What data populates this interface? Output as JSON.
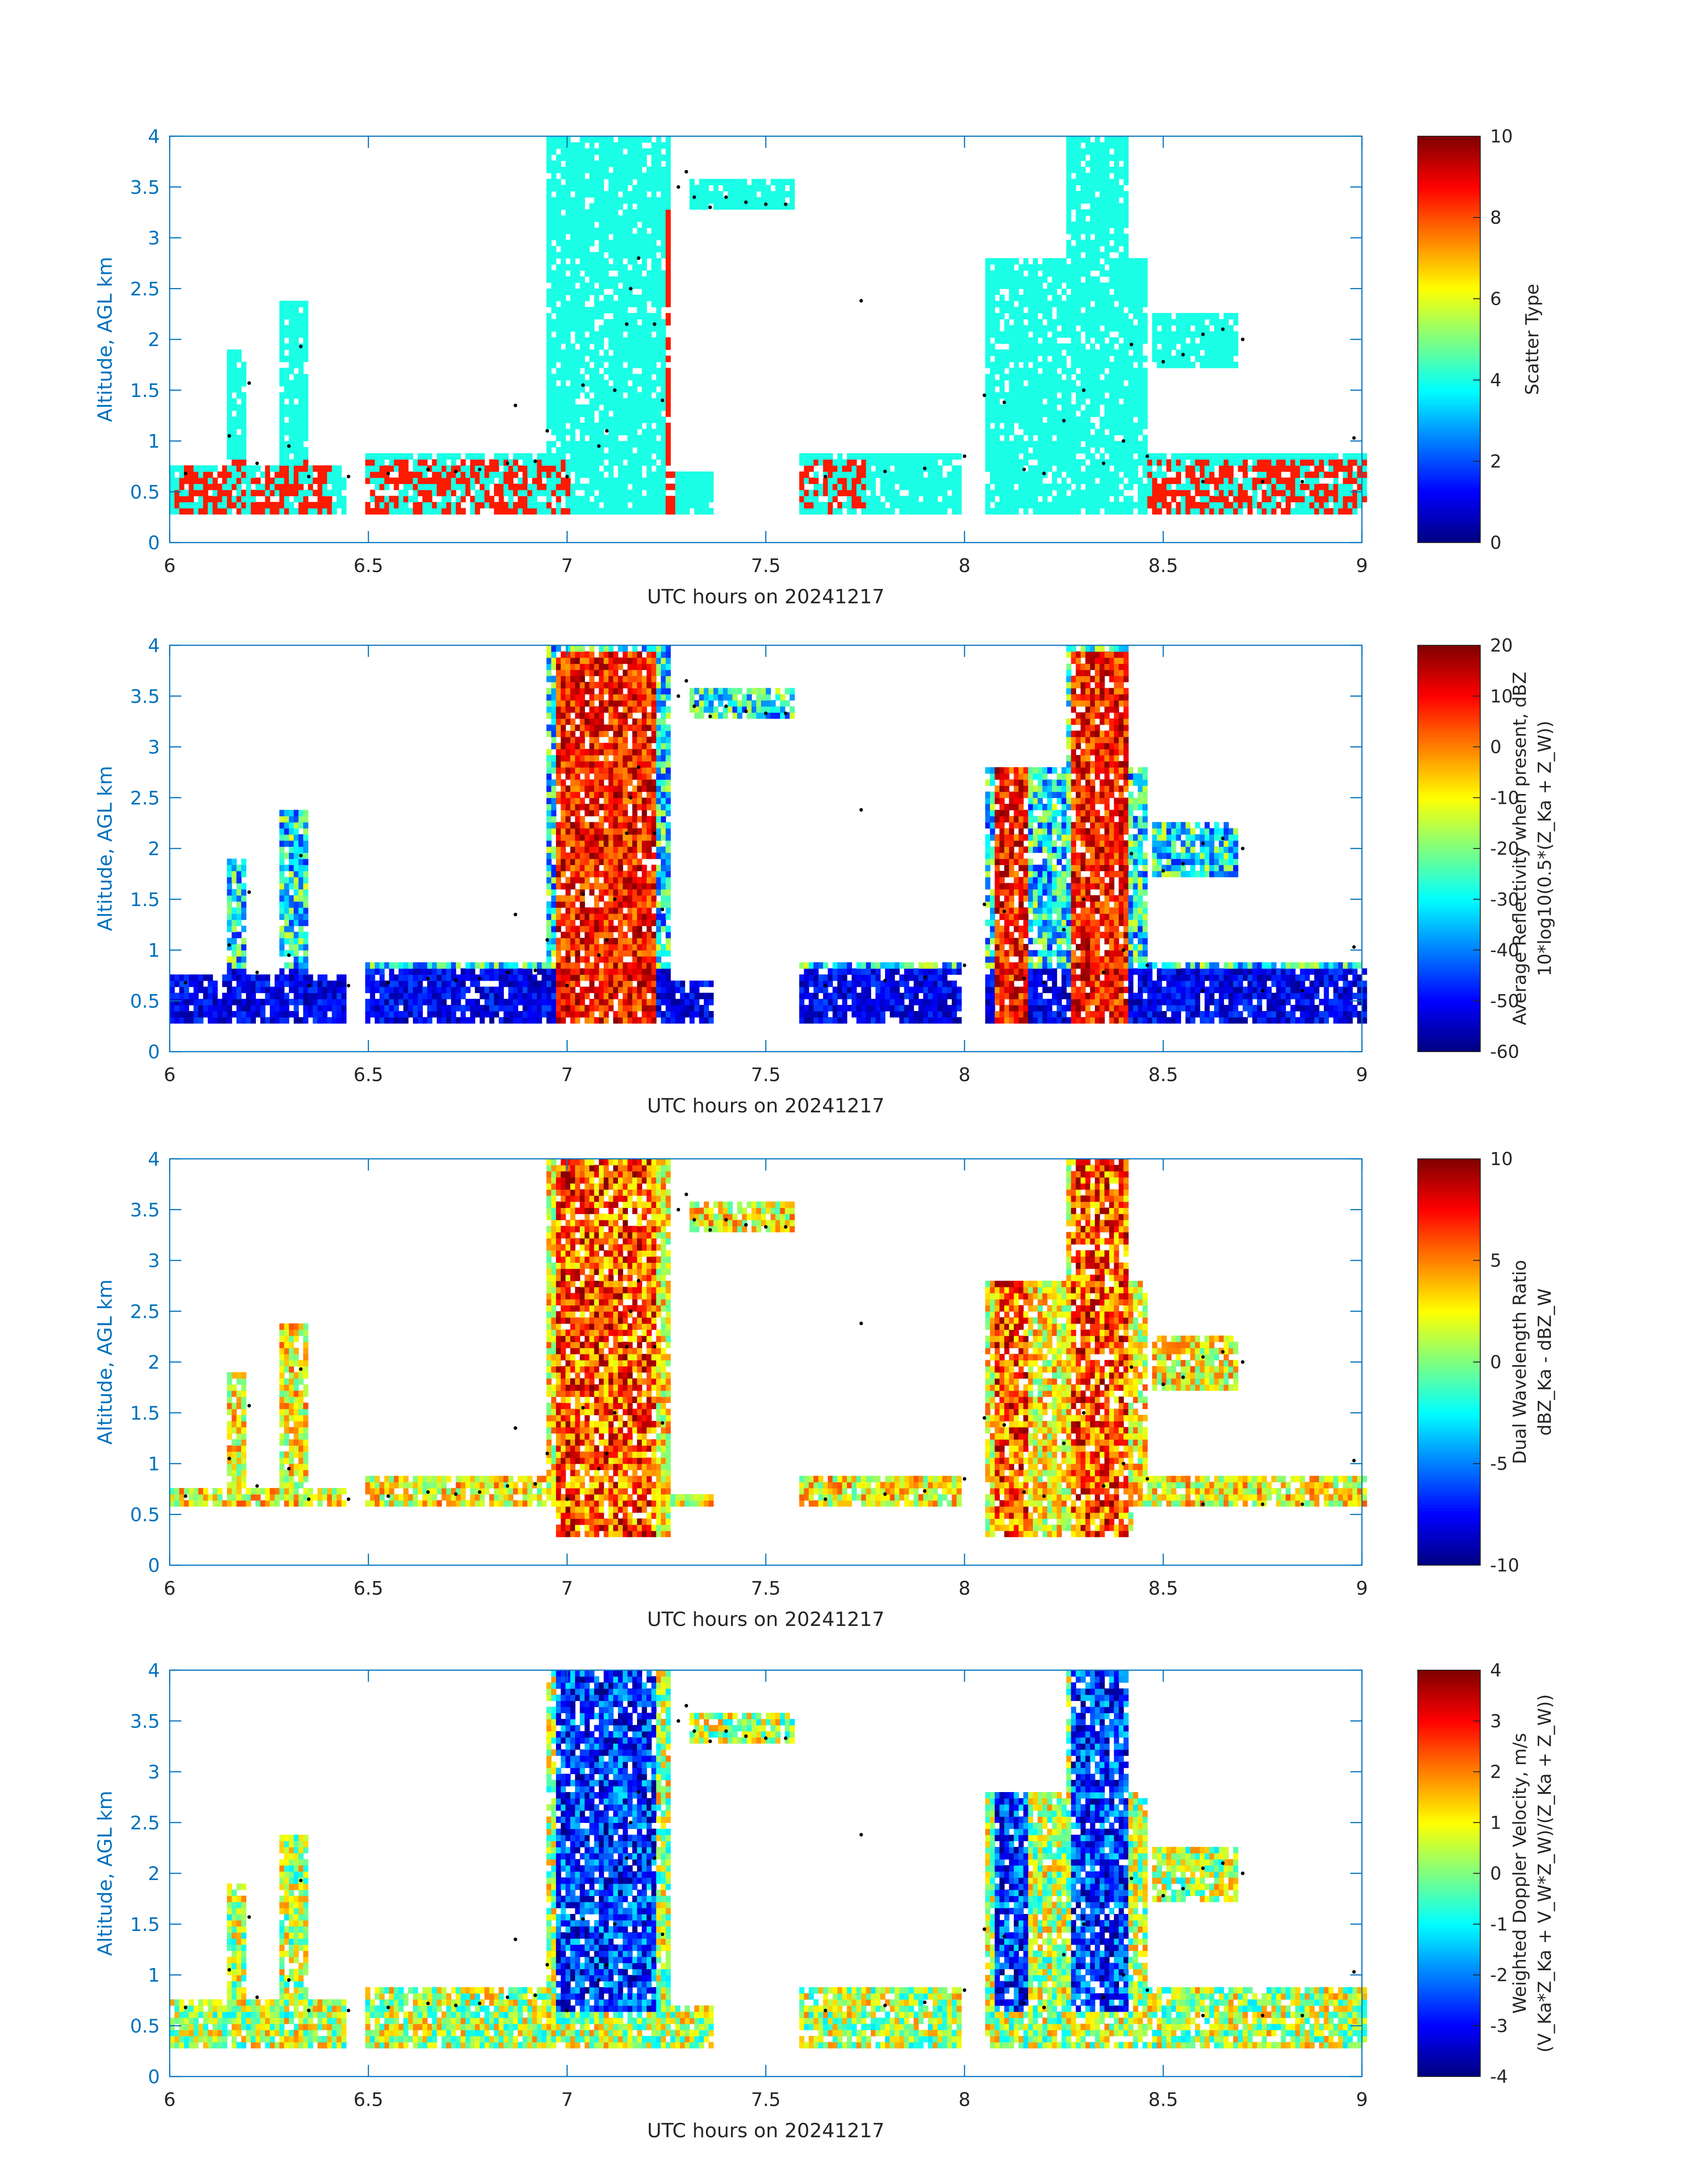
{
  "figure": {
    "background": "#ffffff",
    "axis_color": "#0072bd",
    "text_color": "#262626",
    "marker_color": "#000000"
  },
  "chart_data": [
    {
      "type": "heatmap",
      "title": "",
      "xlabel": "UTC hours on 20241217",
      "ylabel": "Altitude, AGL km",
      "xlim": [
        6,
        9
      ],
      "ylim": [
        0,
        4
      ],
      "xticks": [
        6,
        6.5,
        7,
        7.5,
        8,
        8.5,
        9
      ],
      "xtick_labels": [
        "6",
        "6.5",
        "7",
        "7.5",
        "8",
        "8.5",
        "9"
      ],
      "yticks": [
        0,
        0.5,
        1,
        1.5,
        2,
        2.5,
        3,
        3.5,
        4
      ],
      "ytick_labels": [
        "0",
        "0.5",
        "1",
        "1.5",
        "2",
        "2.5",
        "3",
        "3.5",
        "4"
      ],
      "colorbar": {
        "label_lines": [
          "Scatter Type"
        ],
        "colormap": "jet",
        "clim": [
          0,
          10
        ],
        "ticks": [
          0,
          2,
          4,
          6,
          8,
          10
        ],
        "tick_labels": [
          "0",
          "2",
          "4",
          "6",
          "8",
          "10"
        ]
      },
      "overlay_points": [
        [
          6.04,
          0.68
        ],
        [
          6.15,
          1.05
        ],
        [
          6.2,
          1.57
        ],
        [
          6.22,
          0.78
        ],
        [
          6.3,
          0.95
        ],
        [
          6.33,
          1.93
        ],
        [
          6.35,
          0.65
        ],
        [
          6.45,
          0.65
        ],
        [
          6.55,
          0.68
        ],
        [
          6.65,
          0.72
        ],
        [
          6.72,
          0.7
        ],
        [
          6.78,
          0.72
        ],
        [
          6.85,
          0.78
        ],
        [
          6.92,
          0.8
        ],
        [
          6.87,
          1.35
        ],
        [
          6.95,
          1.1
        ],
        [
          7.0,
          0.65
        ],
        [
          7.04,
          1.55
        ],
        [
          7.08,
          0.95
        ],
        [
          7.1,
          1.1
        ],
        [
          7.12,
          1.5
        ],
        [
          7.15,
          2.15
        ],
        [
          7.16,
          2.5
        ],
        [
          7.18,
          2.8
        ],
        [
          7.22,
          2.15
        ],
        [
          7.24,
          1.4
        ],
        [
          7.28,
          3.5
        ],
        [
          7.3,
          3.65
        ],
        [
          7.32,
          3.4
        ],
        [
          7.36,
          3.3
        ],
        [
          7.4,
          3.4
        ],
        [
          7.45,
          3.35
        ],
        [
          7.5,
          3.33
        ],
        [
          7.55,
          3.33
        ],
        [
          7.74,
          2.38
        ],
        [
          7.65,
          0.65
        ],
        [
          7.8,
          0.7
        ],
        [
          7.9,
          0.73
        ],
        [
          8.0,
          0.85
        ],
        [
          8.05,
          1.45
        ],
        [
          8.1,
          1.38
        ],
        [
          8.15,
          0.72
        ],
        [
          8.2,
          0.68
        ],
        [
          8.25,
          1.2
        ],
        [
          8.3,
          1.5
        ],
        [
          8.35,
          0.78
        ],
        [
          8.4,
          1.0
        ],
        [
          8.42,
          1.95
        ],
        [
          8.46,
          0.85
        ],
        [
          8.5,
          1.78
        ],
        [
          8.55,
          1.85
        ],
        [
          8.6,
          2.05
        ],
        [
          8.65,
          2.1
        ],
        [
          8.7,
          2.0
        ],
        [
          8.6,
          0.6
        ],
        [
          8.75,
          0.6
        ],
        [
          8.85,
          0.6
        ],
        [
          8.98,
          1.03
        ]
      ]
    },
    {
      "type": "heatmap",
      "title": "",
      "xlabel": "UTC hours on 20241217",
      "ylabel": "Altitude, AGL km",
      "xlim": [
        6,
        9
      ],
      "ylim": [
        0,
        4
      ],
      "xticks": [
        6,
        6.5,
        7,
        7.5,
        8,
        8.5,
        9
      ],
      "xtick_labels": [
        "6",
        "6.5",
        "7",
        "7.5",
        "8",
        "8.5",
        "9"
      ],
      "yticks": [
        0,
        0.5,
        1,
        1.5,
        2,
        2.5,
        3,
        3.5,
        4
      ],
      "ytick_labels": [
        "0",
        "0.5",
        "1",
        "1.5",
        "2",
        "2.5",
        "3",
        "3.5",
        "4"
      ],
      "colorbar": {
        "label_lines": [
          "Average Reflectivity when present, dBZ",
          "10*log10(0.5*(Z_Ka + Z_W))"
        ],
        "colormap": "jet",
        "clim": [
          -60,
          20
        ],
        "ticks": [
          -60,
          -50,
          -40,
          -30,
          -20,
          -10,
          0,
          10,
          20
        ],
        "tick_labels": [
          "-60",
          "-50",
          "-40",
          "-30",
          "-20",
          "-10",
          "0",
          "10",
          "20"
        ]
      },
      "overlay_points": [
        [
          6.04,
          0.68
        ],
        [
          6.15,
          1.05
        ],
        [
          6.2,
          1.57
        ],
        [
          6.22,
          0.78
        ],
        [
          6.3,
          0.95
        ],
        [
          6.33,
          1.93
        ],
        [
          6.35,
          0.65
        ],
        [
          6.45,
          0.65
        ],
        [
          6.55,
          0.68
        ],
        [
          6.65,
          0.72
        ],
        [
          6.72,
          0.7
        ],
        [
          6.78,
          0.72
        ],
        [
          6.85,
          0.78
        ],
        [
          6.92,
          0.8
        ],
        [
          6.87,
          1.35
        ],
        [
          6.95,
          1.1
        ],
        [
          7.0,
          0.65
        ],
        [
          7.04,
          1.55
        ],
        [
          7.08,
          0.95
        ],
        [
          7.1,
          1.1
        ],
        [
          7.12,
          1.5
        ],
        [
          7.15,
          2.15
        ],
        [
          7.16,
          2.5
        ],
        [
          7.18,
          2.8
        ],
        [
          7.22,
          2.15
        ],
        [
          7.24,
          1.4
        ],
        [
          7.28,
          3.5
        ],
        [
          7.3,
          3.65
        ],
        [
          7.32,
          3.4
        ],
        [
          7.36,
          3.3
        ],
        [
          7.4,
          3.4
        ],
        [
          7.45,
          3.35
        ],
        [
          7.5,
          3.33
        ],
        [
          7.55,
          3.33
        ],
        [
          7.74,
          2.38
        ],
        [
          7.65,
          0.65
        ],
        [
          7.8,
          0.7
        ],
        [
          7.9,
          0.73
        ],
        [
          8.0,
          0.85
        ],
        [
          8.05,
          1.45
        ],
        [
          8.1,
          1.38
        ],
        [
          8.15,
          0.72
        ],
        [
          8.2,
          0.68
        ],
        [
          8.25,
          1.2
        ],
        [
          8.3,
          1.5
        ],
        [
          8.35,
          0.78
        ],
        [
          8.4,
          1.0
        ],
        [
          8.42,
          1.95
        ],
        [
          8.46,
          0.85
        ],
        [
          8.5,
          1.78
        ],
        [
          8.55,
          1.85
        ],
        [
          8.6,
          2.05
        ],
        [
          8.65,
          2.1
        ],
        [
          8.7,
          2.0
        ],
        [
          8.6,
          0.6
        ],
        [
          8.75,
          0.6
        ],
        [
          8.85,
          0.6
        ],
        [
          8.98,
          1.03
        ]
      ]
    },
    {
      "type": "heatmap",
      "title": "",
      "xlabel": "UTC hours on 20241217",
      "ylabel": "Altitude, AGL km",
      "xlim": [
        6,
        9
      ],
      "ylim": [
        0,
        4
      ],
      "xticks": [
        6,
        6.5,
        7,
        7.5,
        8,
        8.5,
        9
      ],
      "xtick_labels": [
        "6",
        "6.5",
        "7",
        "7.5",
        "8",
        "8.5",
        "9"
      ],
      "yticks": [
        0,
        0.5,
        1,
        1.5,
        2,
        2.5,
        3,
        3.5,
        4
      ],
      "ytick_labels": [
        "0",
        "0.5",
        "1",
        "1.5",
        "2",
        "2.5",
        "3",
        "3.5",
        "4"
      ],
      "colorbar": {
        "label_lines": [
          "Dual Wavelength Ratio",
          "dBZ_Ka - dBZ_W"
        ],
        "colormap": "jet",
        "clim": [
          -10,
          10
        ],
        "ticks": [
          -10,
          -5,
          0,
          5,
          10
        ],
        "tick_labels": [
          "-10",
          "-5",
          "0",
          "5",
          "10"
        ]
      },
      "overlay_points": [
        [
          6.04,
          0.68
        ],
        [
          6.15,
          1.05
        ],
        [
          6.2,
          1.57
        ],
        [
          6.22,
          0.78
        ],
        [
          6.3,
          0.95
        ],
        [
          6.33,
          1.93
        ],
        [
          6.35,
          0.65
        ],
        [
          6.45,
          0.65
        ],
        [
          6.55,
          0.68
        ],
        [
          6.65,
          0.72
        ],
        [
          6.72,
          0.7
        ],
        [
          6.78,
          0.72
        ],
        [
          6.85,
          0.78
        ],
        [
          6.92,
          0.8
        ],
        [
          6.87,
          1.35
        ],
        [
          6.95,
          1.1
        ],
        [
          7.0,
          0.65
        ],
        [
          7.04,
          1.55
        ],
        [
          7.08,
          0.95
        ],
        [
          7.1,
          1.1
        ],
        [
          7.12,
          1.5
        ],
        [
          7.15,
          2.15
        ],
        [
          7.16,
          2.5
        ],
        [
          7.18,
          2.8
        ],
        [
          7.22,
          2.15
        ],
        [
          7.24,
          1.4
        ],
        [
          7.28,
          3.5
        ],
        [
          7.3,
          3.65
        ],
        [
          7.32,
          3.4
        ],
        [
          7.36,
          3.3
        ],
        [
          7.4,
          3.4
        ],
        [
          7.45,
          3.35
        ],
        [
          7.5,
          3.33
        ],
        [
          7.55,
          3.33
        ],
        [
          7.74,
          2.38
        ],
        [
          7.65,
          0.65
        ],
        [
          7.8,
          0.7
        ],
        [
          7.9,
          0.73
        ],
        [
          8.0,
          0.85
        ],
        [
          8.05,
          1.45
        ],
        [
          8.1,
          1.38
        ],
        [
          8.15,
          0.72
        ],
        [
          8.2,
          0.68
        ],
        [
          8.25,
          1.2
        ],
        [
          8.3,
          1.5
        ],
        [
          8.35,
          0.78
        ],
        [
          8.4,
          1.0
        ],
        [
          8.42,
          1.95
        ],
        [
          8.46,
          0.85
        ],
        [
          8.5,
          1.78
        ],
        [
          8.55,
          1.85
        ],
        [
          8.6,
          2.05
        ],
        [
          8.65,
          2.1
        ],
        [
          8.7,
          2.0
        ],
        [
          8.6,
          0.6
        ],
        [
          8.75,
          0.6
        ],
        [
          8.85,
          0.6
        ],
        [
          8.98,
          1.03
        ]
      ]
    },
    {
      "type": "heatmap",
      "title": "",
      "xlabel": "UTC hours on 20241217",
      "ylabel": "Altitude, AGL km",
      "xlim": [
        6,
        9
      ],
      "ylim": [
        0,
        4
      ],
      "xticks": [
        6,
        6.5,
        7,
        7.5,
        8,
        8.5,
        9
      ],
      "xtick_labels": [
        "6",
        "6.5",
        "7",
        "7.5",
        "8",
        "8.5",
        "9"
      ],
      "yticks": [
        0,
        0.5,
        1,
        1.5,
        2,
        2.5,
        3,
        3.5,
        4
      ],
      "ytick_labels": [
        "0",
        "0.5",
        "1",
        "1.5",
        "2",
        "2.5",
        "3",
        "3.5",
        "4"
      ],
      "colorbar": {
        "label_lines": [
          "Weighted Doppler Velocity, m/s",
          "(V_Ka*Z_Ka + V_W*Z_W)/(Z_Ka + Z_W))"
        ],
        "colormap": "jet",
        "clim": [
          -4,
          4
        ],
        "ticks": [
          -4,
          -3,
          -2,
          -1,
          0,
          1,
          2,
          3,
          4
        ],
        "tick_labels": [
          "-4",
          "-3",
          "-2",
          "-1",
          "0",
          "1",
          "2",
          "3",
          "4"
        ]
      },
      "overlay_points": [
        [
          6.04,
          0.68
        ],
        [
          6.15,
          1.05
        ],
        [
          6.2,
          1.57
        ],
        [
          6.22,
          0.78
        ],
        [
          6.3,
          0.95
        ],
        [
          6.33,
          1.93
        ],
        [
          6.35,
          0.65
        ],
        [
          6.45,
          0.65
        ],
        [
          6.55,
          0.68
        ],
        [
          6.65,
          0.72
        ],
        [
          6.72,
          0.7
        ],
        [
          6.78,
          0.72
        ],
        [
          6.85,
          0.78
        ],
        [
          6.92,
          0.8
        ],
        [
          6.87,
          1.35
        ],
        [
          6.95,
          1.1
        ],
        [
          7.0,
          0.65
        ],
        [
          7.04,
          1.55
        ],
        [
          7.08,
          0.95
        ],
        [
          7.1,
          1.1
        ],
        [
          7.12,
          1.5
        ],
        [
          7.15,
          2.15
        ],
        [
          7.16,
          2.5
        ],
        [
          7.18,
          2.8
        ],
        [
          7.22,
          2.15
        ],
        [
          7.24,
          1.4
        ],
        [
          7.28,
          3.5
        ],
        [
          7.3,
          3.65
        ],
        [
          7.32,
          3.4
        ],
        [
          7.36,
          3.3
        ],
        [
          7.4,
          3.4
        ],
        [
          7.45,
          3.35
        ],
        [
          7.5,
          3.33
        ],
        [
          7.55,
          3.33
        ],
        [
          7.74,
          2.38
        ],
        [
          7.65,
          0.65
        ],
        [
          7.8,
          0.7
        ],
        [
          7.9,
          0.73
        ],
        [
          8.0,
          0.85
        ],
        [
          8.05,
          1.45
        ],
        [
          8.1,
          1.38
        ],
        [
          8.15,
          0.72
        ],
        [
          8.2,
          0.68
        ],
        [
          8.25,
          1.2
        ],
        [
          8.3,
          1.5
        ],
        [
          8.35,
          0.78
        ],
        [
          8.4,
          1.0
        ],
        [
          8.42,
          1.95
        ],
        [
          8.46,
          0.85
        ],
        [
          8.5,
          1.78
        ],
        [
          8.55,
          1.85
        ],
        [
          8.6,
          2.05
        ],
        [
          8.65,
          2.1
        ],
        [
          8.7,
          2.0
        ],
        [
          8.6,
          0.6
        ],
        [
          8.75,
          0.6
        ],
        [
          8.85,
          0.6
        ],
        [
          8.98,
          1.03
        ]
      ]
    }
  ]
}
